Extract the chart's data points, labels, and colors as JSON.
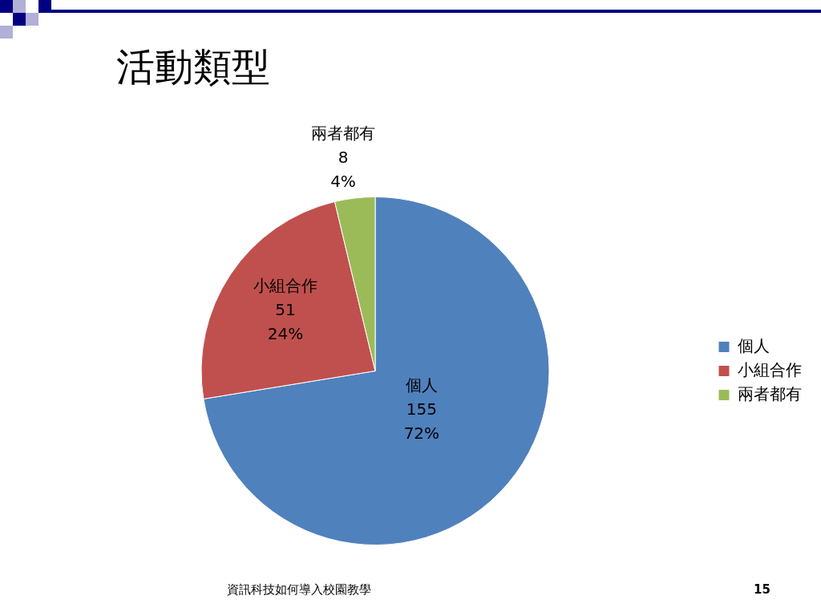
{
  "chart_data": {
    "type": "pie",
    "title": "活動類型",
    "categories": [
      "個人",
      "小組合作",
      "兩者都有"
    ],
    "values": [
      155,
      51,
      8
    ],
    "value_labels": [
      "155\n72%",
      "51\n24%",
      "8\n4%"
    ],
    "colors": [
      "#4f81bd",
      "#c0504d",
      "#9bbb59"
    ],
    "legend": "right",
    "annotations": [
      "資訊科技如何導入校園教學",
      "15"
    ]
  }
}
